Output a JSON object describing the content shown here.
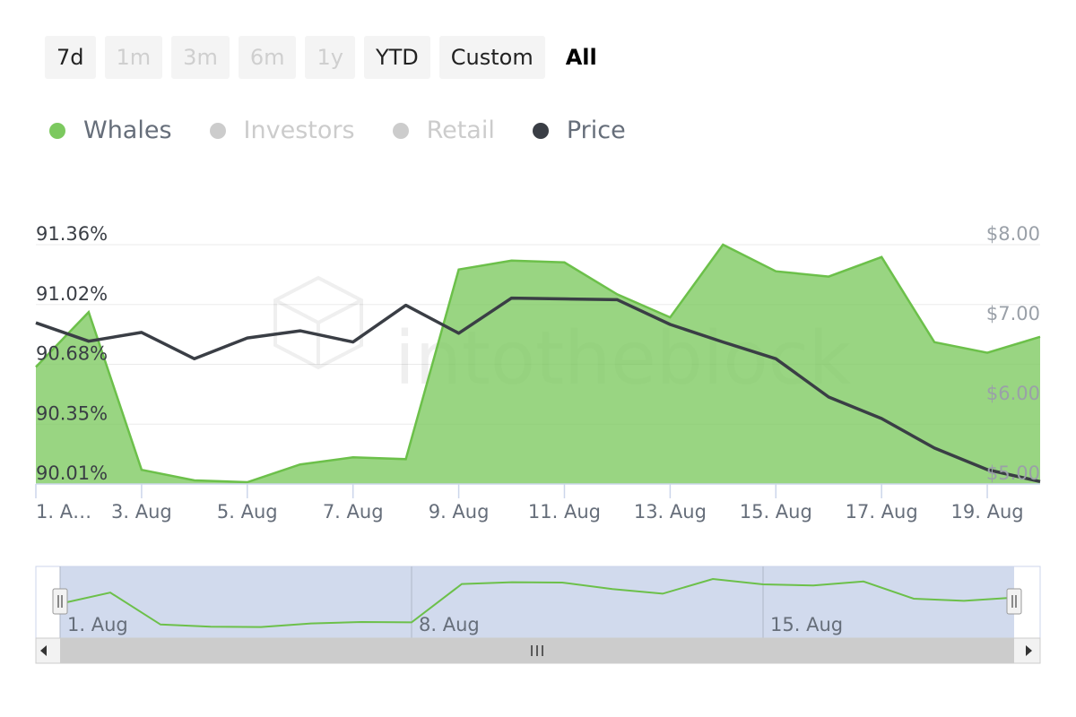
{
  "range_selector": {
    "buttons": [
      {
        "label": "7d",
        "state": "normal"
      },
      {
        "label": "1m",
        "state": "disabled"
      },
      {
        "label": "3m",
        "state": "disabled"
      },
      {
        "label": "6m",
        "state": "disabled"
      },
      {
        "label": "1y",
        "state": "disabled"
      },
      {
        "label": "YTD",
        "state": "normal"
      },
      {
        "label": "Custom",
        "state": "normal"
      },
      {
        "label": "All",
        "state": "active"
      }
    ]
  },
  "legend": [
    {
      "label": "Whales",
      "color": "#7cc95f",
      "visible": true
    },
    {
      "label": "Investors",
      "color": "#cccccc",
      "visible": false
    },
    {
      "label": "Retail",
      "color": "#cccccc",
      "visible": false
    },
    {
      "label": "Price",
      "color": "#3a3e45",
      "visible": true
    }
  ],
  "watermark": "intotheblock",
  "chart_data": {
    "type": "area",
    "x": [
      "1. Aug",
      "2. Aug",
      "3. Aug",
      "4. Aug",
      "5. Aug",
      "6. Aug",
      "7. Aug",
      "8. Aug",
      "9. Aug",
      "10. Aug",
      "11. Aug",
      "12. Aug",
      "13. Aug",
      "14. Aug",
      "15. Aug",
      "16. Aug",
      "17. Aug",
      "18. Aug",
      "19. Aug",
      "20. Aug"
    ],
    "x_tick_labels": [
      "1. A…",
      "3. Aug",
      "5. Aug",
      "7. Aug",
      "9. Aug",
      "11. Aug",
      "13. Aug",
      "15. Aug",
      "17. Aug",
      "19. Aug"
    ],
    "x_tick_positions": [
      "1. Aug",
      "3. Aug",
      "5. Aug",
      "7. Aug",
      "9. Aug",
      "11. Aug",
      "13. Aug",
      "15. Aug",
      "17. Aug",
      "19. Aug"
    ],
    "left_axis": {
      "ticks": [
        "91.36%",
        "91.02%",
        "90.68%",
        "90.35%",
        "90.01%"
      ],
      "ylim": [
        90.01,
        91.36
      ]
    },
    "right_axis": {
      "ticks": [
        "$8.00",
        "$7.00",
        "$6.00",
        "$5.00"
      ],
      "ylim": [
        5.0,
        8.0
      ]
    },
    "series": [
      {
        "name": "Whales",
        "axis": "left",
        "kind": "area",
        "color": "#7cc95f",
        "values": [
          90.67,
          90.98,
          90.09,
          90.03,
          90.02,
          90.12,
          90.16,
          90.15,
          91.22,
          91.27,
          91.26,
          91.08,
          90.95,
          91.36,
          91.21,
          91.18,
          91.29,
          90.81,
          90.75,
          90.84
        ]
      },
      {
        "name": "Price",
        "axis": "right",
        "kind": "line",
        "color": "#3a3e45",
        "values": [
          7.02,
          6.79,
          6.9,
          6.57,
          6.83,
          6.92,
          6.78,
          7.24,
          6.89,
          7.33,
          7.32,
          7.31,
          7.0,
          6.78,
          6.57,
          6.09,
          5.82,
          5.45,
          5.18,
          5.03
        ]
      }
    ],
    "grid": true,
    "navigator": {
      "labels": [
        "1. Aug",
        "8. Aug",
        "15. Aug"
      ],
      "label_positions": [
        "1. Aug",
        "8. Aug",
        "15. Aug"
      ]
    }
  }
}
